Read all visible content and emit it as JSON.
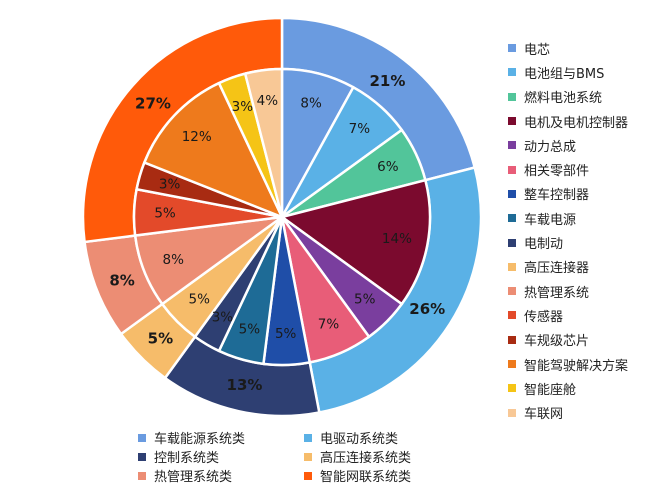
{
  "chart_data": {
    "type": "pie",
    "title": "",
    "outer_ring": {
      "series": [
        {
          "name": "车载能源系统类",
          "value": 21,
          "label": "21%",
          "color": "#6a9be0"
        },
        {
          "name": "电驱动系统类",
          "value": 26,
          "label": "26%",
          "color": "#5ab1e6"
        },
        {
          "name": "控制系统类",
          "value": 13,
          "label": "13%",
          "color": "#2e3f72"
        },
        {
          "name": "高压连接系统类",
          "value": 5,
          "label": "5%",
          "color": "#f6bc6a"
        },
        {
          "name": "热管理系统类",
          "value": 8,
          "label": "8%",
          "color": "#ec8d74"
        },
        {
          "name": "智能网联系统类",
          "value": 27,
          "label": "27%",
          "color": "#ff5a0a"
        }
      ]
    },
    "inner_ring": {
      "series": [
        {
          "name": "电芯",
          "value": 8,
          "label": "8%",
          "color": "#6a9be0"
        },
        {
          "name": "电池组与BMS",
          "value": 7,
          "label": "7%",
          "color": "#5ab1e6"
        },
        {
          "name": "燃料电池系统",
          "value": 6,
          "label": "6%",
          "color": "#52c59a"
        },
        {
          "name": "电机及电机控制器",
          "value": 14,
          "label": "14%",
          "color": "#7b0a2e"
        },
        {
          "name": "动力总成",
          "value": 5,
          "label": "5%",
          "color": "#7a3e9e"
        },
        {
          "name": "相关零部件",
          "value": 7,
          "label": "7%",
          "color": "#e85d78"
        },
        {
          "name": "整车控制器",
          "value": 5,
          "label": "5%",
          "color": "#1f4ea8"
        },
        {
          "name": "车载电源",
          "value": 5,
          "label": "5%",
          "color": "#1e6b96"
        },
        {
          "name": "电制动",
          "value": 3,
          "label": "3%",
          "color": "#2e3f72"
        },
        {
          "name": "高压连接器",
          "value": 5,
          "label": "5%",
          "color": "#f6bc6a"
        },
        {
          "name": "热管理系统",
          "value": 8,
          "label": "8%",
          "color": "#ec8d74"
        },
        {
          "name": "传感器",
          "value": 5,
          "label": "5%",
          "color": "#e34a2a"
        },
        {
          "name": "车规级芯片",
          "value": 3,
          "label": "3%",
          "color": "#a82b12"
        },
        {
          "name": "智能驾驶解决方案",
          "value": 12,
          "label": "12%",
          "color": "#ee7a1c"
        },
        {
          "name": "智能座舱",
          "value": 3,
          "label": "3%",
          "color": "#f5c416"
        },
        {
          "name": "车联网",
          "value": 4,
          "label": "4%",
          "color": "#f8c896"
        }
      ]
    },
    "legend_right": [
      "电芯",
      "电池组与BMS",
      "燃料电池系统",
      "电机及电机控制器",
      "动力总成",
      "相关零部件",
      "整车控制器",
      "车载电源",
      "电制动",
      "高压连接器",
      "热管理系统",
      "传感器",
      "车规级芯片",
      "智能驾驶解决方案",
      "智能座舱",
      "车联网"
    ],
    "legend_bottom": [
      "车载能源系统类",
      "电驱动系统类",
      "控制系统类",
      "高压连接系统类",
      "热管理系统类",
      "智能网联系统类"
    ],
    "legend_right_placement": "right",
    "legend_bottom_placement": "bottom"
  }
}
